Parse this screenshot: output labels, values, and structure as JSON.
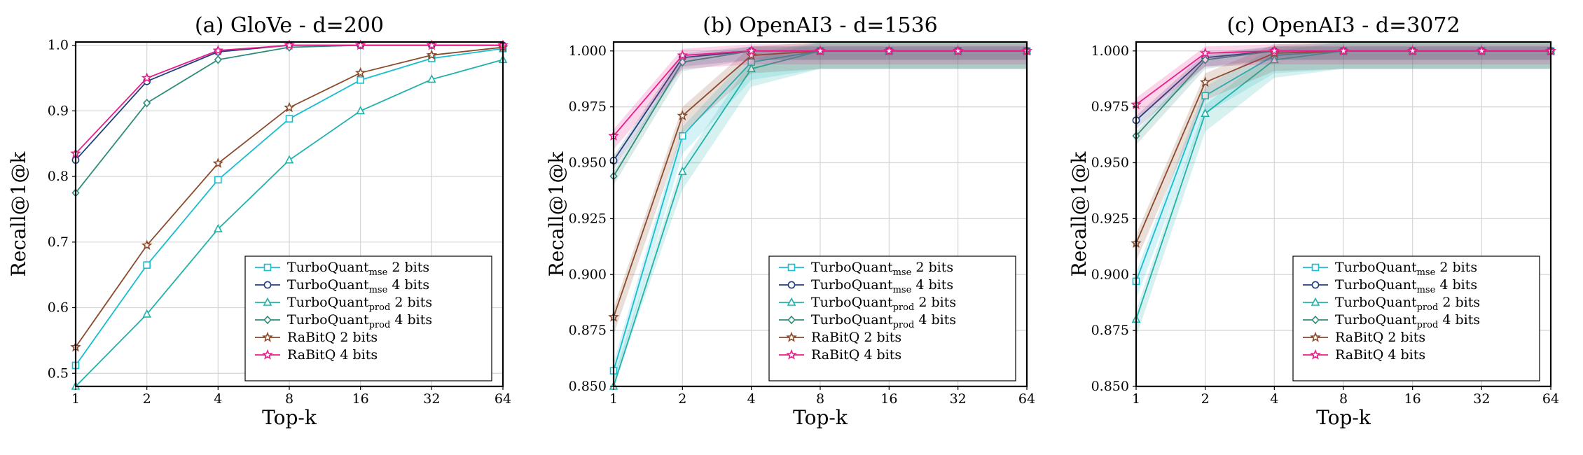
{
  "colors": {
    "tq_mse_2": "#17becf",
    "tq_mse_4": "#1f3f7a",
    "tq_prod_2": "#20b2aa",
    "tq_prod_4": "#2e8b7a",
    "rabitq_2": "#8b4a2b",
    "rabitq_4": "#e91e8c"
  },
  "chart_data": [
    {
      "type": "line",
      "title": "(a) GloVe - d=200",
      "xlabel": "Top-k",
      "ylabel": "Recall@1@k",
      "x": [
        1,
        2,
        4,
        8,
        16,
        32,
        64
      ],
      "x_ticks": [
        "1",
        "2",
        "4",
        "8",
        "16",
        "32",
        "64"
      ],
      "x_scale": "log2",
      "ylim": [
        0.48,
        1.005
      ],
      "y_ticks": [
        0.5,
        0.6,
        0.7,
        0.8,
        0.9,
        1.0
      ],
      "y_tick_labels": [
        "0.5",
        "0.6",
        "0.7",
        "0.8",
        "0.9",
        "1.0"
      ],
      "grid": true,
      "legend_position": "bottom-right",
      "series": [
        {
          "name": "TurboQuant",
          "sub": "mse",
          "suffix": " 2 bits",
          "color_key": "tq_mse_2",
          "marker": "square",
          "values": [
            0.512,
            0.665,
            0.795,
            0.888,
            0.947,
            0.98,
            0.995
          ],
          "band": 0
        },
        {
          "name": "TurboQuant",
          "sub": "mse",
          "suffix": " 4 bits",
          "color_key": "tq_mse_4",
          "marker": "circle",
          "values": [
            0.825,
            0.945,
            0.99,
            1.0,
            1.0,
            1.0,
            1.0
          ],
          "band": 0
        },
        {
          "name": "TurboQuant",
          "sub": "prod",
          "suffix": " 2 bits",
          "color_key": "tq_prod_2",
          "marker": "triangle",
          "values": [
            0.48,
            0.59,
            0.72,
            0.825,
            0.9,
            0.948,
            0.978
          ],
          "band": 0
        },
        {
          "name": "TurboQuant",
          "sub": "prod",
          "suffix": " 4 bits",
          "color_key": "tq_prod_4",
          "marker": "diamond",
          "values": [
            0.775,
            0.912,
            0.978,
            0.997,
            1.0,
            1.0,
            1.0
          ],
          "band": 0
        },
        {
          "name": "RaBitQ",
          "sub": "",
          "suffix": " 2 bits",
          "color_key": "rabitq_2",
          "marker": "star",
          "values": [
            0.54,
            0.695,
            0.82,
            0.905,
            0.958,
            0.985,
            0.997
          ],
          "band": 0
        },
        {
          "name": "RaBitQ",
          "sub": "",
          "suffix": " 4 bits",
          "color_key": "rabitq_4",
          "marker": "star",
          "values": [
            0.835,
            0.95,
            0.992,
            1.0,
            1.0,
            1.0,
            1.0
          ],
          "band": 0
        }
      ]
    },
    {
      "type": "line",
      "title": "(b) OpenAI3 - d=1536",
      "xlabel": "Top-k",
      "ylabel": "Recall@1@k",
      "x": [
        1,
        2,
        4,
        8,
        16,
        32,
        64
      ],
      "x_ticks": [
        "1",
        "2",
        "4",
        "8",
        "16",
        "32",
        "64"
      ],
      "x_scale": "log2",
      "ylim": [
        0.85,
        1.004
      ],
      "y_ticks": [
        0.85,
        0.875,
        0.9,
        0.925,
        0.95,
        0.975,
        1.0
      ],
      "y_tick_labels": [
        "0.850",
        "0.875",
        "0.900",
        "0.925",
        "0.950",
        "0.975",
        "1.000"
      ],
      "grid": true,
      "legend_position": "bottom-right",
      "series": [
        {
          "name": "TurboQuant",
          "sub": "mse",
          "suffix": " 2 bits",
          "color_key": "tq_mse_2",
          "marker": "square",
          "values": [
            0.857,
            0.962,
            0.995,
            1.0,
            1.0,
            1.0,
            1.0
          ],
          "band": 0.004
        },
        {
          "name": "TurboQuant",
          "sub": "mse",
          "suffix": " 4 bits",
          "color_key": "tq_mse_4",
          "marker": "circle",
          "values": [
            0.951,
            0.997,
            1.0,
            1.0,
            1.0,
            1.0,
            1.0
          ],
          "band": 0.002
        },
        {
          "name": "TurboQuant",
          "sub": "prod",
          "suffix": " 2 bits",
          "color_key": "tq_prod_2",
          "marker": "triangle",
          "values": [
            0.85,
            0.946,
            0.992,
            1.0,
            1.0,
            1.0,
            1.0
          ],
          "band": 0.004
        },
        {
          "name": "TurboQuant",
          "sub": "prod",
          "suffix": " 4 bits",
          "color_key": "tq_prod_4",
          "marker": "diamond",
          "values": [
            0.944,
            0.995,
            1.0,
            1.0,
            1.0,
            1.0,
            1.0
          ],
          "band": 0.002
        },
        {
          "name": "RaBitQ",
          "sub": "",
          "suffix": " 2 bits",
          "color_key": "rabitq_2",
          "marker": "star",
          "values": [
            0.881,
            0.971,
            0.998,
            1.0,
            1.0,
            1.0,
            1.0
          ],
          "band": 0.004
        },
        {
          "name": "RaBitQ",
          "sub": "",
          "suffix": " 4 bits",
          "color_key": "rabitq_4",
          "marker": "star",
          "values": [
            0.962,
            0.998,
            1.0,
            1.0,
            1.0,
            1.0,
            1.0
          ],
          "band": 0.003
        }
      ]
    },
    {
      "type": "line",
      "title": "(c) OpenAI3 - d=3072",
      "xlabel": "Top-k",
      "ylabel": "Recall@1@k",
      "x": [
        1,
        2,
        4,
        8,
        16,
        32,
        64
      ],
      "x_ticks": [
        "1",
        "2",
        "4",
        "8",
        "16",
        "32",
        "64"
      ],
      "x_scale": "log2",
      "ylim": [
        0.85,
        1.004
      ],
      "y_ticks": [
        0.85,
        0.875,
        0.9,
        0.925,
        0.95,
        0.975,
        1.0
      ],
      "y_tick_labels": [
        "0.850",
        "0.875",
        "0.900",
        "0.925",
        "0.950",
        "0.975",
        "1.000"
      ],
      "grid": true,
      "legend_position": "bottom-right",
      "series": [
        {
          "name": "TurboQuant",
          "sub": "mse",
          "suffix": " 2 bits",
          "color_key": "tq_mse_2",
          "marker": "square",
          "values": [
            0.897,
            0.98,
            0.998,
            1.0,
            1.0,
            1.0,
            1.0
          ],
          "band": 0.004
        },
        {
          "name": "TurboQuant",
          "sub": "mse",
          "suffix": " 4 bits",
          "color_key": "tq_mse_4",
          "marker": "circle",
          "values": [
            0.969,
            0.997,
            1.0,
            1.0,
            1.0,
            1.0,
            1.0
          ],
          "band": 0.002
        },
        {
          "name": "TurboQuant",
          "sub": "prod",
          "suffix": " 2 bits",
          "color_key": "tq_prod_2",
          "marker": "triangle",
          "values": [
            0.88,
            0.972,
            0.996,
            1.0,
            1.0,
            1.0,
            1.0
          ],
          "band": 0.004
        },
        {
          "name": "TurboQuant",
          "sub": "prod",
          "suffix": " 4 bits",
          "color_key": "tq_prod_4",
          "marker": "diamond",
          "values": [
            0.962,
            0.996,
            1.0,
            1.0,
            1.0,
            1.0,
            1.0
          ],
          "band": 0.002
        },
        {
          "name": "RaBitQ",
          "sub": "",
          "suffix": " 2 bits",
          "color_key": "rabitq_2",
          "marker": "star",
          "values": [
            0.914,
            0.986,
            0.999,
            1.0,
            1.0,
            1.0,
            1.0
          ],
          "band": 0.004
        },
        {
          "name": "RaBitQ",
          "sub": "",
          "suffix": " 4 bits",
          "color_key": "rabitq_4",
          "marker": "star",
          "values": [
            0.976,
            0.999,
            1.0,
            1.0,
            1.0,
            1.0,
            1.0
          ],
          "band": 0.003
        }
      ]
    }
  ]
}
